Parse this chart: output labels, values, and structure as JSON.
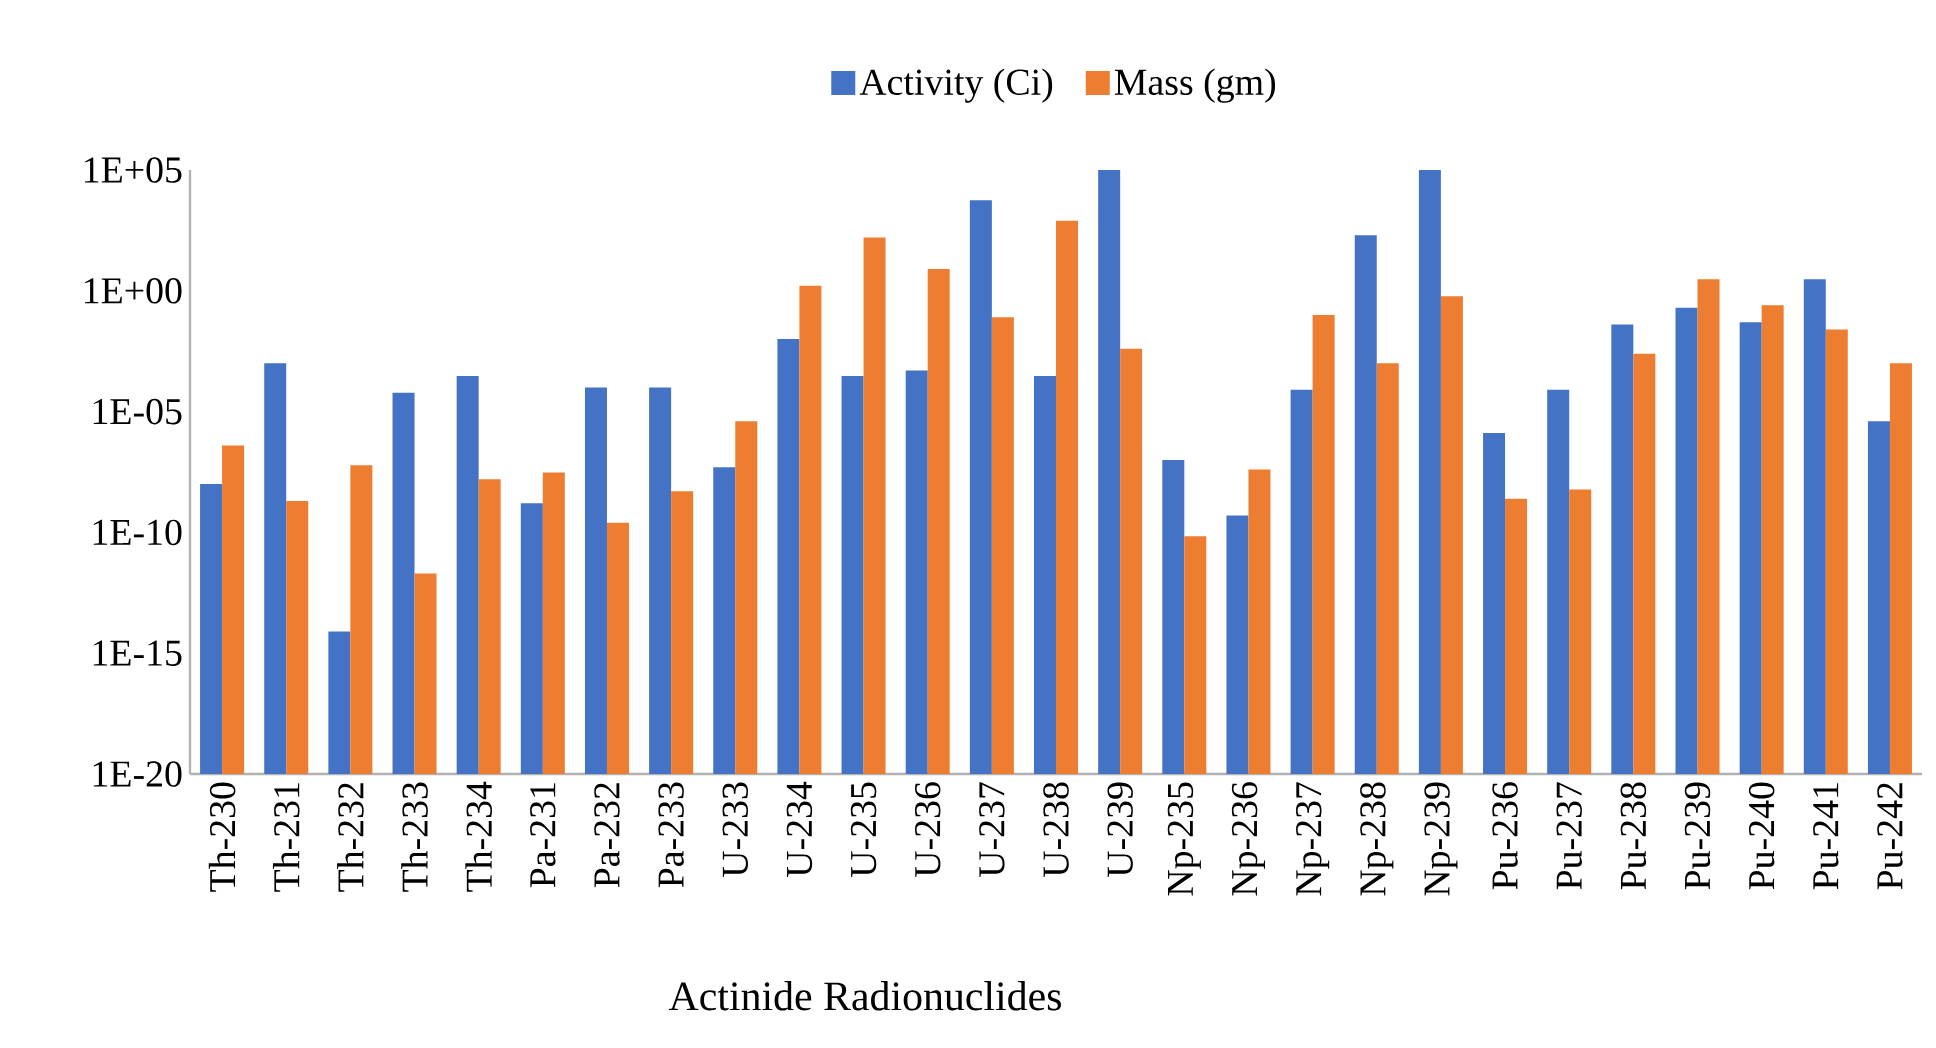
{
  "chart_data": {
    "type": "bar",
    "xlabel": "Actinide Radionuclides",
    "log": "y",
    "legend": "top",
    "categories": [
      "Th-230",
      "Th-231",
      "Th-232",
      "Th-233",
      "Th-234",
      "Pa-231",
      "Pa-232",
      "Pa-233",
      "U-233",
      "U-234",
      "U-235",
      "U-236",
      "U-237",
      "U-238",
      "U-239",
      "Np-235",
      "Np-236",
      "Np-237",
      "Np-238",
      "Np-239",
      "Pu-236",
      "Pu-237",
      "Pu-238",
      "Pu-239",
      "Pu-240",
      "Pu-241",
      "Pu-242"
    ],
    "series": [
      {
        "name": "Activity (Ci)",
        "color": "#4472c4",
        "values": [
          1e-08,
          0.001,
          8e-15,
          6e-05,
          0.0003,
          1.6e-09,
          0.0001,
          0.0001,
          5e-08,
          0.01,
          0.0003,
          0.0005,
          5600,
          0.0003,
          100000.0,
          1e-07,
          5e-10,
          8e-05,
          200,
          100000.0,
          1.3e-06,
          8e-05,
          0.04,
          0.2,
          0.05,
          3,
          4e-06
        ]
      },
      {
        "name": "Mass (gm)",
        "color": "#ed7d31",
        "values": [
          4e-07,
          2e-09,
          6e-08,
          2e-12,
          1.6e-08,
          3e-08,
          2.5e-10,
          5e-09,
          4e-06,
          1.6,
          160,
          8,
          0.08,
          800,
          0.004,
          7e-11,
          4e-08,
          0.1,
          0.001,
          0.6,
          2.5e-09,
          6e-09,
          0.0025,
          3,
          0.25,
          0.025,
          0.001
        ]
      }
    ],
    "ylim": [
      1e-20,
      100000.0
    ],
    "yticks": [
      {
        "value": 1e-20,
        "label": "1E-20"
      },
      {
        "value": 1e-15,
        "label": "1E-15"
      },
      {
        "value": 1e-10,
        "label": "1E-10"
      },
      {
        "value": 1e-05,
        "label": "1E-05"
      },
      {
        "value": 1,
        "label": "1E+00"
      },
      {
        "value": 100000.0,
        "label": "1E+05"
      }
    ]
  }
}
